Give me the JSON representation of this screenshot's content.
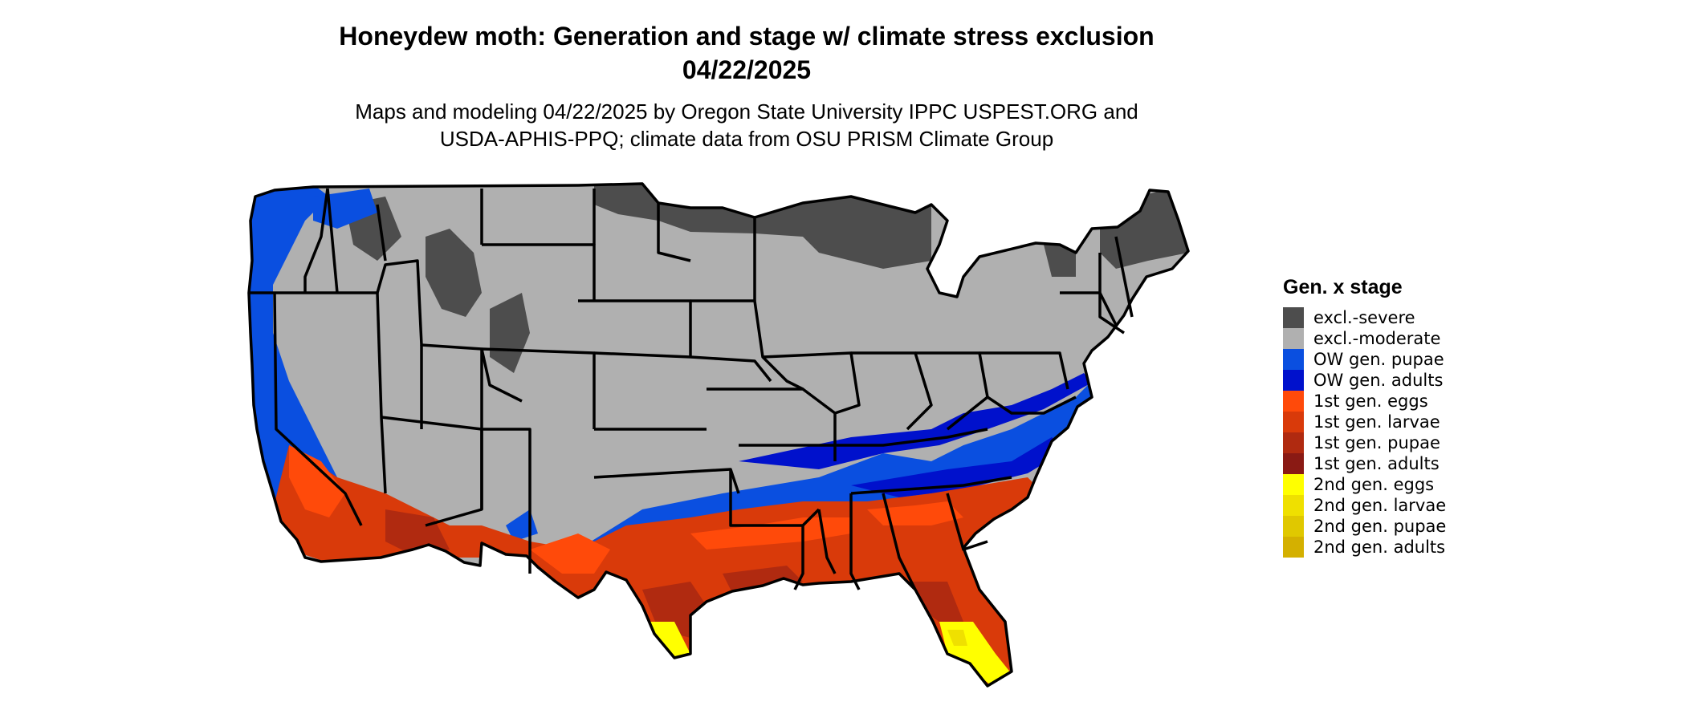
{
  "title": {
    "line1": "Honeydew moth: Generation and stage w/ climate stress exclusion",
    "line2": "04/22/2025"
  },
  "subtitle": {
    "line1": "Maps and modeling 04/22/2025 by Oregon State University IPPC USPEST.ORG and",
    "line2": "USDA-APHIS-PPQ; climate data from OSU PRISM Climate Group"
  },
  "legend": {
    "title": "Gen. x stage",
    "items": [
      {
        "label": "excl.-severe",
        "color": "#4d4d4d"
      },
      {
        "label": "excl.-moderate",
        "color": "#b0b0b0"
      },
      {
        "label": "OW gen. pupae",
        "color": "#0a4fe0"
      },
      {
        "label": "OW gen. adults",
        "color": "#0011cc"
      },
      {
        "label": "1st gen. eggs",
        "color": "#ff4a0a"
      },
      {
        "label": "1st gen. larvae",
        "color": "#d93a0a"
      },
      {
        "label": "1st gen. pupae",
        "color": "#b02a10"
      },
      {
        "label": "1st gen. adults",
        "color": "#8a1a14"
      },
      {
        "label": "2nd gen. eggs",
        "color": "#ffff00"
      },
      {
        "label": "2nd gen. larvae",
        "color": "#efe000"
      },
      {
        "label": "2nd gen. pupae",
        "color": "#e0c800"
      },
      {
        "label": "2nd gen. adults",
        "color": "#d4b000"
      }
    ]
  },
  "map": {
    "region": "Contiguous United States",
    "state_borders": "black"
  }
}
